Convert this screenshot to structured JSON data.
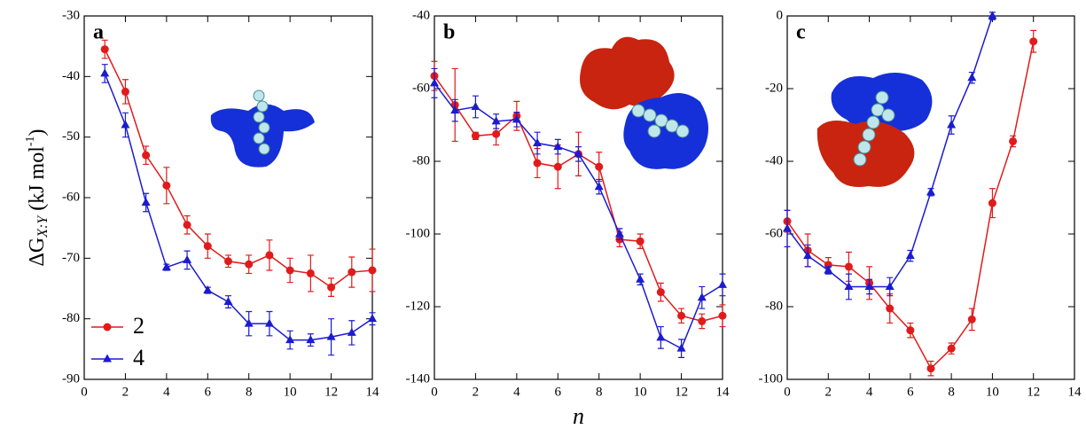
{
  "chart_data": [
    {
      "type": "line",
      "label": "a",
      "ylabel": {
        "symbol": "ΔG",
        "subscript": "X:Y",
        "unit": "(kJ mol",
        "superscript": "-1",
        "close": ")"
      },
      "x": [
        1,
        2,
        3,
        4,
        5,
        6,
        7,
        8,
        9,
        10,
        11,
        12,
        13,
        14
      ],
      "xlim": [
        0,
        14
      ],
      "xticks": [
        0,
        2,
        4,
        6,
        8,
        10,
        12,
        14
      ],
      "ylim": [
        -90,
        -30
      ],
      "yticks": [
        -90,
        -80,
        -70,
        -60,
        -50,
        -40,
        -30
      ],
      "legend": "lower left",
      "series": [
        {
          "name": "2",
          "color": "#e01b1b",
          "marker": "circle",
          "values": [
            -35.5,
            -42.5,
            -53,
            -58,
            -64.5,
            -68,
            -70.5,
            -71,
            -69.5,
            -72,
            -72.5,
            -74.8,
            -72.3,
            -72
          ],
          "errors": [
            1.5,
            2,
            1.5,
            3,
            1.5,
            2,
            1,
            1.5,
            2.5,
            2,
            3,
            1.5,
            2.5,
            3.5
          ]
        },
        {
          "name": "4",
          "color": "#1b1bd0",
          "marker": "triangle",
          "values": [
            -39.5,
            -48,
            -60.8,
            -71.5,
            -70.3,
            -75.3,
            -77.2,
            -80.8,
            -80.8,
            -83.5,
            -83.5,
            -83,
            -82.3,
            -80
          ],
          "errors": [
            1.5,
            2,
            1.5,
            0.5,
            1.5,
            0.5,
            1,
            2,
            2,
            1.5,
            1,
            3,
            2,
            1
          ]
        }
      ]
    },
    {
      "type": "line",
      "label": "b",
      "xlabel": "n",
      "x": [
        0,
        1,
        2,
        3,
        4,
        5,
        6,
        7,
        8,
        9,
        10,
        11,
        12,
        13,
        14
      ],
      "xlim": [
        0,
        14
      ],
      "xticks": [
        0,
        2,
        4,
        6,
        8,
        10,
        12,
        14
      ],
      "ylim": [
        -140,
        -40
      ],
      "yticks": [
        -140,
        -120,
        -100,
        -80,
        -60,
        -40
      ],
      "series": [
        {
          "name": "2",
          "color": "#e01b1b",
          "marker": "circle",
          "values": [
            -56.5,
            -64.5,
            -73,
            -72.5,
            -67.5,
            -80.5,
            -81.5,
            -78,
            -81.5,
            -101.5,
            -102,
            -116,
            -122.5,
            -124,
            -122.5
          ],
          "errors": [
            4,
            10,
            1,
            3,
            4,
            4,
            6,
            6,
            4,
            2,
            2,
            2.5,
            2,
            2,
            3
          ]
        },
        {
          "name": "4",
          "color": "#1b1bd0",
          "marker": "triangle",
          "values": [
            -58.5,
            -66,
            -65,
            -69,
            -68.5,
            -75,
            -76,
            -78,
            -87,
            -100,
            -112.5,
            -128.5,
            -131.5,
            -117.5,
            -114
          ],
          "errors": [
            4,
            3,
            3,
            2,
            2,
            3,
            2,
            2,
            2,
            1.5,
            1.5,
            3,
            2.5,
            3,
            3
          ]
        }
      ]
    },
    {
      "type": "line",
      "label": "c",
      "x": [
        0,
        1,
        2,
        3,
        4,
        5,
        6,
        7,
        8,
        9,
        10,
        11,
        12,
        13,
        14
      ],
      "xlim": [
        0,
        14
      ],
      "xticks": [
        0,
        2,
        4,
        6,
        8,
        10,
        12,
        14
      ],
      "ylim": [
        -100,
        0
      ],
      "yticks": [
        -100,
        -80,
        -60,
        -40,
        -20,
        0
      ],
      "series": [
        {
          "name": "2",
          "color": "#e01b1b",
          "marker": "circle",
          "values": [
            -56.5,
            -64.5,
            -68.5,
            -69,
            -73.5,
            -80.5,
            -86.5,
            -97,
            -91.5,
            -83.5,
            -51.5,
            -34.5,
            -7,
            null,
            null
          ],
          "errors": [
            3,
            4.5,
            2,
            4,
            4.5,
            4,
            2,
            2,
            1.5,
            3,
            4,
            1.5,
            3,
            null,
            null
          ]
        },
        {
          "name": "4",
          "color": "#1b1bd0",
          "marker": "triangle",
          "values": [
            -58.5,
            -66,
            -70,
            -74.5,
            -74.5,
            -74.5,
            -66,
            -48.5,
            -30,
            -17,
            0,
            null,
            null,
            null,
            null
          ],
          "errors": [
            5,
            3,
            1,
            3.5,
            2,
            2.5,
            1.5,
            1,
            2.5,
            1.5,
            1,
            null,
            null,
            null,
            null
          ]
        }
      ]
    }
  ]
}
